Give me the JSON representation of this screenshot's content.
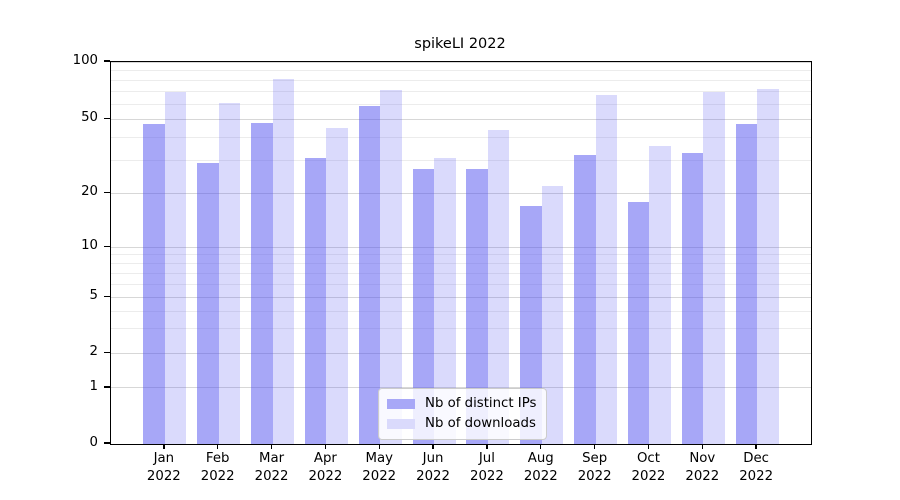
{
  "title": "spikeLI 2022",
  "chart_data": {
    "type": "bar",
    "title": "spikeLI 2022",
    "categories": [
      "Jan 2022",
      "Feb 2022",
      "Mar 2022",
      "Apr 2022",
      "May 2022",
      "Jun 2022",
      "Jul 2022",
      "Aug 2022",
      "Sep 2022",
      "Oct 2022",
      "Nov 2022",
      "Dec 2022"
    ],
    "series": [
      {
        "name": "Nb of distinct IPs",
        "values": [
          47,
          29,
          48,
          31,
          59,
          27,
          27,
          17,
          32,
          18,
          33,
          47
        ],
        "color": "rgba(80,80,240,0.50)",
        "swatch_color": "#a8a8f7"
      },
      {
        "name": "Nb of downloads",
        "values": [
          70,
          61,
          81,
          45,
          71,
          31,
          44,
          22,
          67,
          36,
          70,
          72
        ],
        "color": "rgba(80,80,240,0.21)",
        "swatch_color": "#dadafc"
      }
    ],
    "yscale": "symlog",
    "yticks": [
      0,
      1,
      2,
      5,
      10,
      20,
      50,
      100
    ],
    "ylim": [
      0,
      100
    ],
    "xlabel": "",
    "ylabel": "",
    "grid": true,
    "legend_position": "lower center"
  },
  "colors": {
    "grid_major": "#d7d7d7",
    "grid_minor": "#ececec",
    "spine": "#000000",
    "text": "#000000",
    "legend_border": "#cccccc",
    "legend_bg": "rgba(255,255,255,0.82)"
  }
}
